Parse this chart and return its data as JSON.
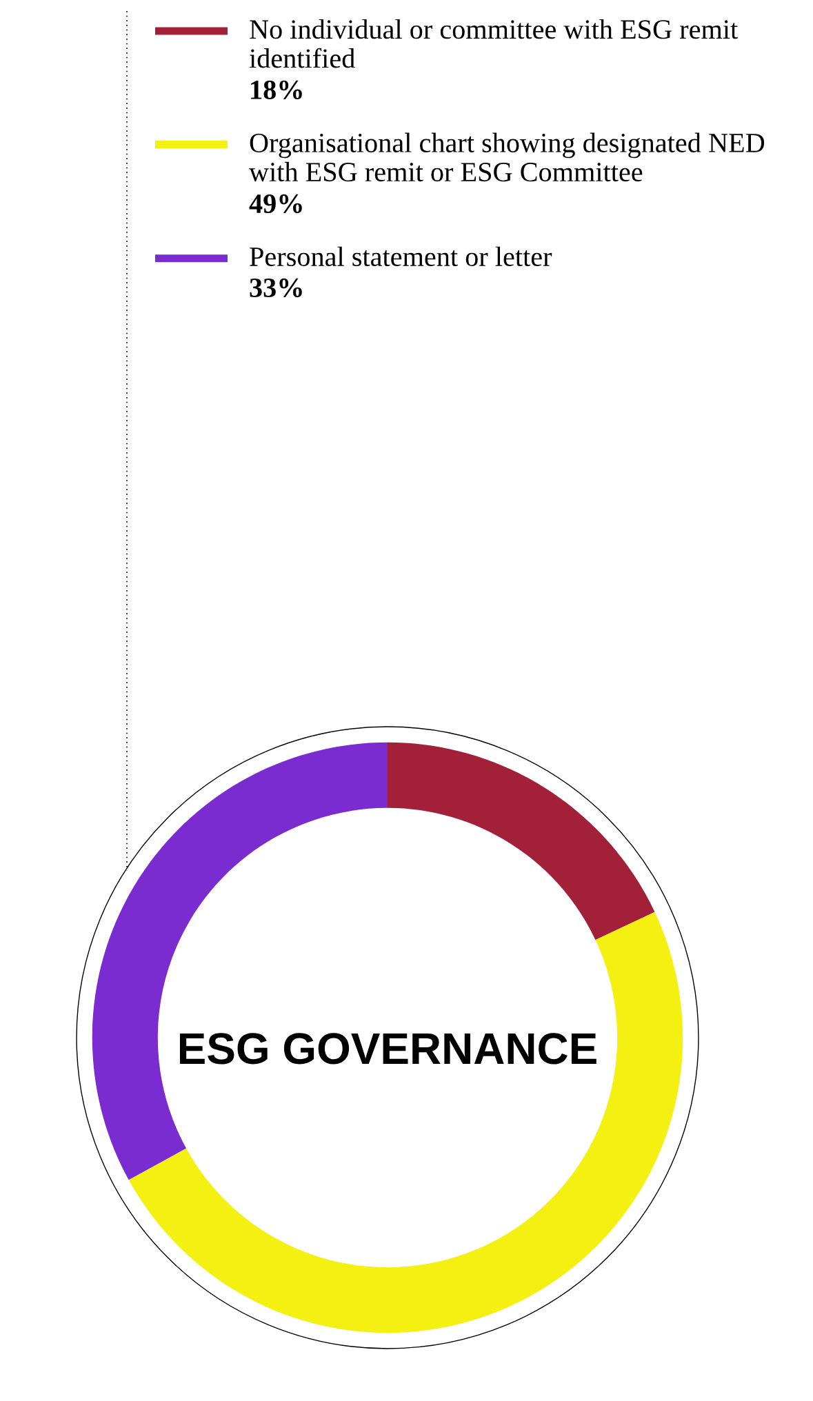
{
  "chart_data": {
    "type": "donut",
    "title": "ESG GOVERNANCE",
    "categories": [
      "No individual or committee with ESG remit identified",
      "Organisational chart showing designated NED with ESG remit or ESG Committee",
      "Personal statement or letter"
    ],
    "values": [
      18,
      49,
      33
    ],
    "value_labels": [
      "18%",
      "49%",
      "33%"
    ],
    "colors": [
      "#a32039",
      "#f4f012",
      "#7b2cd0"
    ],
    "legend": "top"
  }
}
